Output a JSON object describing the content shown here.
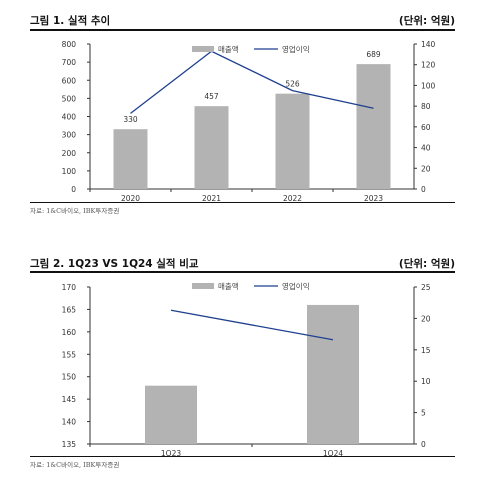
{
  "charts": [
    {
      "title": "그림 1. 실적 추이",
      "unit": "(단위: 억원)",
      "source": "자료: 1&C바이오, IBK투자증권"
    },
    {
      "title": "그림 2. 1Q23 VS 1Q24 실적 비교",
      "unit": "(단위: 억원)",
      "source": "자료: 1&C바이오, IBK투자증권"
    }
  ],
  "chart_data": [
    {
      "type": "bar+line",
      "categories": [
        "2020",
        "2021",
        "2022",
        "2023"
      ],
      "series": [
        {
          "name": "매출액",
          "type": "bar",
          "axis": "left",
          "values": [
            330,
            457,
            526,
            689
          ],
          "data_labels": [
            "330",
            "457",
            "526",
            "689"
          ],
          "color": "#b3b3b3"
        },
        {
          "name": "영업이익",
          "type": "line",
          "axis": "right",
          "values": [
            73,
            133,
            95,
            78
          ],
          "color": "#1f3f8f"
        }
      ],
      "y_left": {
        "min": 0,
        "max": 800,
        "step": 100,
        "ticks": [
          "0",
          "100",
          "200",
          "300",
          "400",
          "500",
          "600",
          "700",
          "800"
        ]
      },
      "y_right": {
        "min": 0,
        "max": 140,
        "step": 20,
        "ticks": [
          "0",
          "20",
          "40",
          "60",
          "80",
          "100",
          "120",
          "140"
        ]
      },
      "legend": "top-center",
      "grid": false
    },
    {
      "type": "bar+line",
      "categories": [
        "1Q23",
        "1Q24"
      ],
      "series": [
        {
          "name": "매출액",
          "type": "bar",
          "axis": "left",
          "values": [
            148,
            166
          ],
          "color": "#b3b3b3"
        },
        {
          "name": "영업이익",
          "type": "line",
          "axis": "right",
          "values": [
            21.3,
            16.6
          ],
          "color": "#1f3f8f"
        }
      ],
      "y_left": {
        "min": 135,
        "max": 170,
        "step": 5,
        "ticks": [
          "135",
          "140",
          "145",
          "150",
          "155",
          "160",
          "165",
          "170"
        ]
      },
      "y_right": {
        "min": 0,
        "max": 25,
        "step": 5,
        "ticks": [
          "0",
          "5",
          "10",
          "15",
          "20",
          "25"
        ]
      },
      "legend": "top-center",
      "grid": false
    }
  ]
}
